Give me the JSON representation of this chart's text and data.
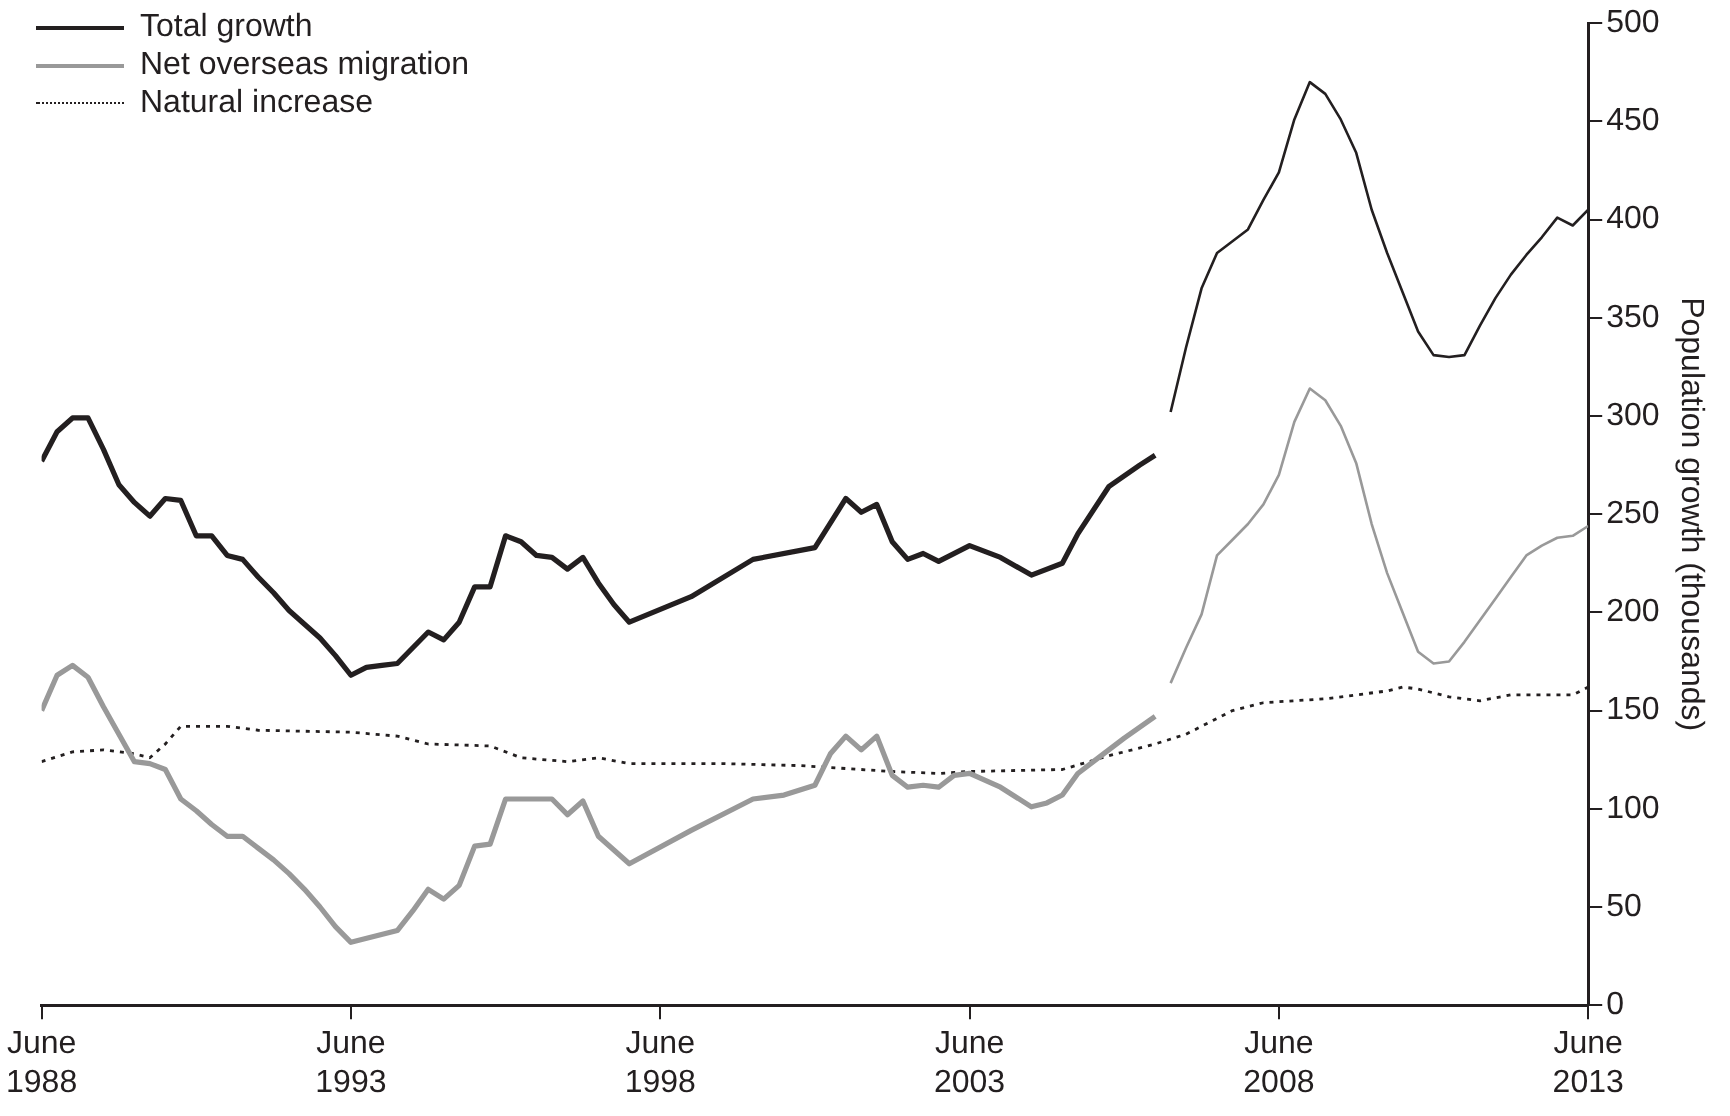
{
  "chart_data": {
    "type": "line",
    "ylabel": "Population growth (thousands)",
    "ylim": [
      0,
      500
    ],
    "yticks": [
      0,
      50,
      100,
      150,
      200,
      250,
      300,
      350,
      400,
      450,
      500
    ],
    "xlim": [
      "1988-06",
      "2013-06"
    ],
    "xticks": [
      {
        "value": "1988-06",
        "label": "June 1988"
      },
      {
        "value": "1993-06",
        "label": "June 1993"
      },
      {
        "value": "1998-06",
        "label": "June 1998"
      },
      {
        "value": "2003-06",
        "label": "June 2003"
      },
      {
        "value": "2008-06",
        "label": "June 2008"
      },
      {
        "value": "2013-06",
        "label": "June 2013"
      }
    ],
    "grid": false,
    "legend": "top left",
    "marker": "none",
    "series": [
      {
        "name": "Total growth",
        "color": "#231f20",
        "line_style": "solid",
        "x": [
          "1988-06",
          "1988-09",
          "1988-12",
          "1989-03",
          "1989-06",
          "1989-09",
          "1989-12",
          "1990-03",
          "1990-06",
          "1990-09",
          "1990-12",
          "1991-03",
          "1991-06",
          "1991-09",
          "1991-12",
          "1992-03",
          "1992-06",
          "1992-09",
          "1992-12",
          "1993-03",
          "1993-06",
          "1993-09",
          "1993-12",
          "1994-03",
          "1994-06",
          "1994-09",
          "1994-12",
          "1995-03",
          "1995-06",
          "1995-09",
          "1995-12",
          "1996-03",
          "1996-06",
          "1996-09",
          "1996-12",
          "1997-03",
          "1997-06",
          "1997-09",
          "1997-12",
          "1998-12",
          "1999-12",
          "2000-12",
          "2001-06",
          "2001-09",
          "2001-12",
          "2002-03",
          "2002-06",
          "2002-09",
          "2002-12",
          "2003-06",
          "2003-12",
          "2004-06",
          "2004-12",
          "2005-03",
          "2005-09",
          "2006-03",
          "2006-06"
        ],
        "values": [
          277,
          292,
          299,
          299,
          283,
          265,
          256,
          249,
          258,
          257,
          239,
          239,
          229,
          227,
          218,
          210,
          201,
          194,
          187,
          178,
          168,
          172,
          173,
          174,
          182,
          190,
          186,
          195,
          213,
          213,
          239,
          236,
          229,
          228,
          222,
          228,
          215,
          204,
          195,
          208,
          227,
          233,
          258,
          251,
          255,
          236,
          227,
          230,
          226,
          234,
          228,
          219,
          225,
          240,
          264,
          275,
          280
        ]
      },
      {
        "name": "Net overseas migration",
        "color": "#999999",
        "line_style": "solid",
        "x": [
          "1988-06",
          "1988-09",
          "1988-12",
          "1989-03",
          "1989-06",
          "1989-09",
          "1989-12",
          "1990-03",
          "1990-06",
          "1990-09",
          "1990-12",
          "1991-03",
          "1991-06",
          "1991-09",
          "1991-12",
          "1992-03",
          "1992-06",
          "1992-09",
          "1992-12",
          "1993-03",
          "1993-06",
          "1994-03",
          "1994-06",
          "1994-09",
          "1994-12",
          "1995-03",
          "1995-06",
          "1995-09",
          "1995-12",
          "1996-09",
          "1996-12",
          "1997-03",
          "1997-06",
          "1997-09",
          "1997-12",
          "1998-12",
          "1999-12",
          "2000-06",
          "2000-12",
          "2001-03",
          "2001-06",
          "2001-09",
          "2001-12",
          "2002-03",
          "2002-06",
          "2002-09",
          "2002-12",
          "2003-03",
          "2003-06",
          "2003-12",
          "2004-06",
          "2004-09",
          "2004-12",
          "2005-03",
          "2005-06",
          "2005-12",
          "2006-06"
        ],
        "values": [
          150,
          168,
          173,
          167,
          152,
          138,
          124,
          123,
          120,
          105,
          99,
          92,
          86,
          86,
          80,
          74,
          67,
          59,
          50,
          40,
          32,
          38,
          48,
          59,
          54,
          61,
          81,
          82,
          105,
          105,
          97,
          104,
          86,
          79,
          72,
          89,
          105,
          107,
          112,
          128,
          137,
          130,
          137,
          117,
          111,
          112,
          111,
          117,
          118,
          111,
          101,
          103,
          107,
          118,
          124,
          136,
          147
        ]
      },
      {
        "name": "Natural increase",
        "color": "#231f20",
        "line_style": "dotted",
        "x": [
          "1988-06",
          "1988-12",
          "1989-06",
          "1989-12",
          "1990-03",
          "1990-06",
          "1990-09",
          "1991-06",
          "1991-12",
          "1993-06",
          "1994-03",
          "1994-09",
          "1995-09",
          "1996-03",
          "1996-12",
          "1997-06",
          "1997-12",
          "1999-06",
          "2000-09",
          "2002-03",
          "2002-12",
          "2003-06",
          "2004-12",
          "2005-09",
          "2006-06",
          "2006-12",
          "2007-03",
          "2007-09",
          "2008-03",
          "2008-09",
          "2009-03",
          "2009-09",
          "2010-03",
          "2010-06",
          "2010-09",
          "2011-03",
          "2011-09",
          "2012-03",
          "2013-03",
          "2013-06"
        ],
        "values": [
          124,
          129,
          130,
          128,
          126,
          133,
          142,
          142,
          140,
          139,
          137,
          133,
          132,
          126,
          124,
          126,
          123,
          123,
          122,
          119,
          118,
          119,
          120,
          127,
          133,
          138,
          142,
          150,
          154,
          155,
          156,
          158,
          160,
          162,
          161,
          157,
          155,
          158,
          158,
          162
        ]
      },
      {
        "color": "#231f20",
        "line_style": "solid",
        "x": [
          "2006-09",
          "2006-12",
          "2007-03",
          "2007-06",
          "2007-09",
          "2007-12",
          "2008-03",
          "2008-06",
          "2008-09",
          "2008-12",
          "2009-03",
          "2009-06",
          "2009-09",
          "2009-12",
          "2010-03",
          "2010-06",
          "2010-09",
          "2010-12",
          "2011-03",
          "2011-06",
          "2011-09",
          "2011-12",
          "2012-03",
          "2012-06",
          "2012-09",
          "2012-12",
          "2013-03",
          "2013-06"
        ],
        "values": [
          302,
          335,
          365,
          383,
          389,
          395,
          410,
          424,
          451,
          470,
          464,
          451,
          434,
          405,
          383,
          363,
          343,
          331,
          330,
          331,
          346,
          360,
          372,
          382,
          391,
          401,
          397,
          405
        ]
      },
      {
        "color": "#999999",
        "line_style": "solid",
        "x": [
          "2006-09",
          "2006-12",
          "2007-03",
          "2007-06",
          "2007-09",
          "2007-12",
          "2008-03",
          "2008-06",
          "2008-09",
          "2008-12",
          "2009-03",
          "2009-06",
          "2009-09",
          "2009-12",
          "2010-03",
          "2010-06",
          "2010-09",
          "2010-12",
          "2011-03",
          "2011-06",
          "2011-09",
          "2011-12",
          "2012-03",
          "2012-06",
          "2012-09",
          "2012-12",
          "2013-03",
          "2013-06"
        ],
        "values": [
          164,
          182,
          199,
          229,
          237,
          245,
          255,
          270,
          297,
          314,
          308,
          295,
          276,
          245,
          220,
          200,
          180,
          174,
          175,
          185,
          196,
          207,
          218,
          229,
          234,
          238,
          239,
          244
        ]
      }
    ]
  }
}
